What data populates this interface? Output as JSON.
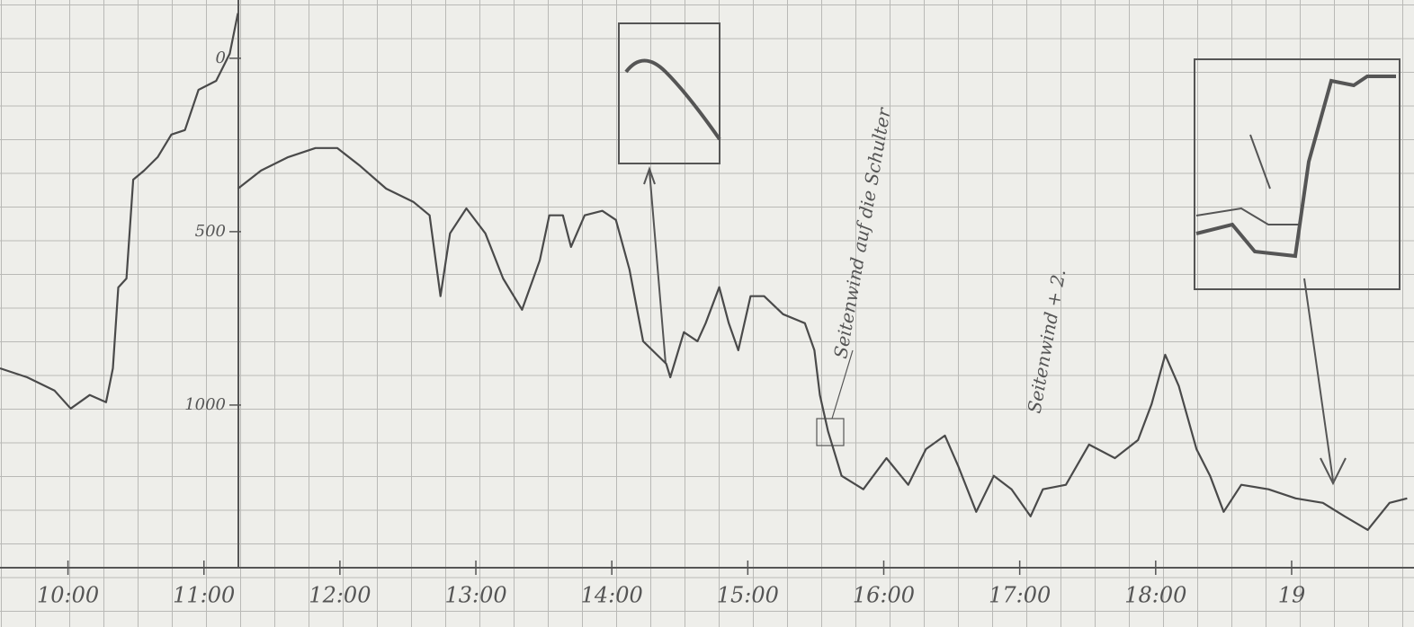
{
  "chart_data": {
    "type": "line",
    "x": [
      9.5,
      9.7,
      9.9,
      10.02,
      10.16,
      10.28,
      10.33,
      10.37,
      10.43,
      10.48,
      10.56,
      10.66,
      10.76,
      10.86,
      10.96,
      11.09,
      11.19,
      11.25,
      11.25,
      11.25,
      11.42,
      11.62,
      11.82,
      11.98,
      12.15,
      12.34,
      12.54,
      12.66,
      12.74,
      12.81,
      12.93,
      13.07,
      13.2,
      13.34,
      13.47,
      13.54,
      13.64,
      13.7,
      13.8,
      13.93,
      14.03,
      14.13,
      14.23,
      14.4,
      14.43,
      14.53,
      14.63,
      14.69,
      14.79,
      14.86,
      14.93,
      15.02,
      15.12,
      15.26,
      15.42,
      15.49,
      15.53,
      15.59,
      15.69,
      15.85,
      16.02,
      16.18,
      16.31,
      16.45,
      16.55,
      16.68,
      16.81,
      16.94,
      17.08,
      17.17,
      17.34,
      17.51,
      17.7,
      17.87,
      17.97,
      18.07,
      18.17,
      18.3,
      18.4,
      18.5,
      18.63,
      18.83,
      19.03,
      19.23,
      19.39,
      19.56,
      19.72,
      19.85
    ],
    "values": [
      894,
      920,
      958,
      1010,
      971,
      992,
      894,
      661,
      635,
      350,
      324,
      285,
      220,
      207,
      91,
      65,
      -13,
      -130,
      null,
      376,
      324,
      285,
      259,
      259,
      311,
      376,
      414,
      453,
      686,
      505,
      433,
      505,
      635,
      725,
      583,
      453,
      453,
      544,
      453,
      440,
      466,
      609,
      816,
      881,
      920,
      790,
      816,
      764,
      660,
      764,
      842,
      686,
      686,
      738,
      764,
      842,
      971,
      1075,
      1204,
      1243,
      1153,
      1230,
      1127,
      1088,
      1178,
      1308,
      1204,
      1243,
      1321,
      1243,
      1230,
      1114,
      1153,
      1101,
      997,
      855,
      945,
      1127,
      1204,
      1308,
      1230,
      1243,
      1269,
      1282,
      1321,
      1360,
      1282,
      1269
    ],
    "color": "#4a4a4a",
    "xlim": [
      9.5,
      19.9
    ],
    "xticks": [
      {
        "value": 10,
        "label": "10:00"
      },
      {
        "value": 11,
        "label": "11:00"
      },
      {
        "value": 12,
        "label": "12:00"
      },
      {
        "value": 13,
        "label": "13:00"
      },
      {
        "value": 14,
        "label": "14:00"
      },
      {
        "value": 15,
        "label": "15:00"
      },
      {
        "value": 16,
        "label": "16:00"
      },
      {
        "value": 17,
        "label": "17:00"
      },
      {
        "value": 18,
        "label": "18:00"
      },
      19
    ],
    "ylim": [
      -168,
      1640
    ],
    "y_inverted": true,
    "yticks": [
      0,
      500,
      1000
    ],
    "annotations": [
      "Seitenwind auf die Schulter",
      "Seitenwind + 2."
    ]
  }
}
